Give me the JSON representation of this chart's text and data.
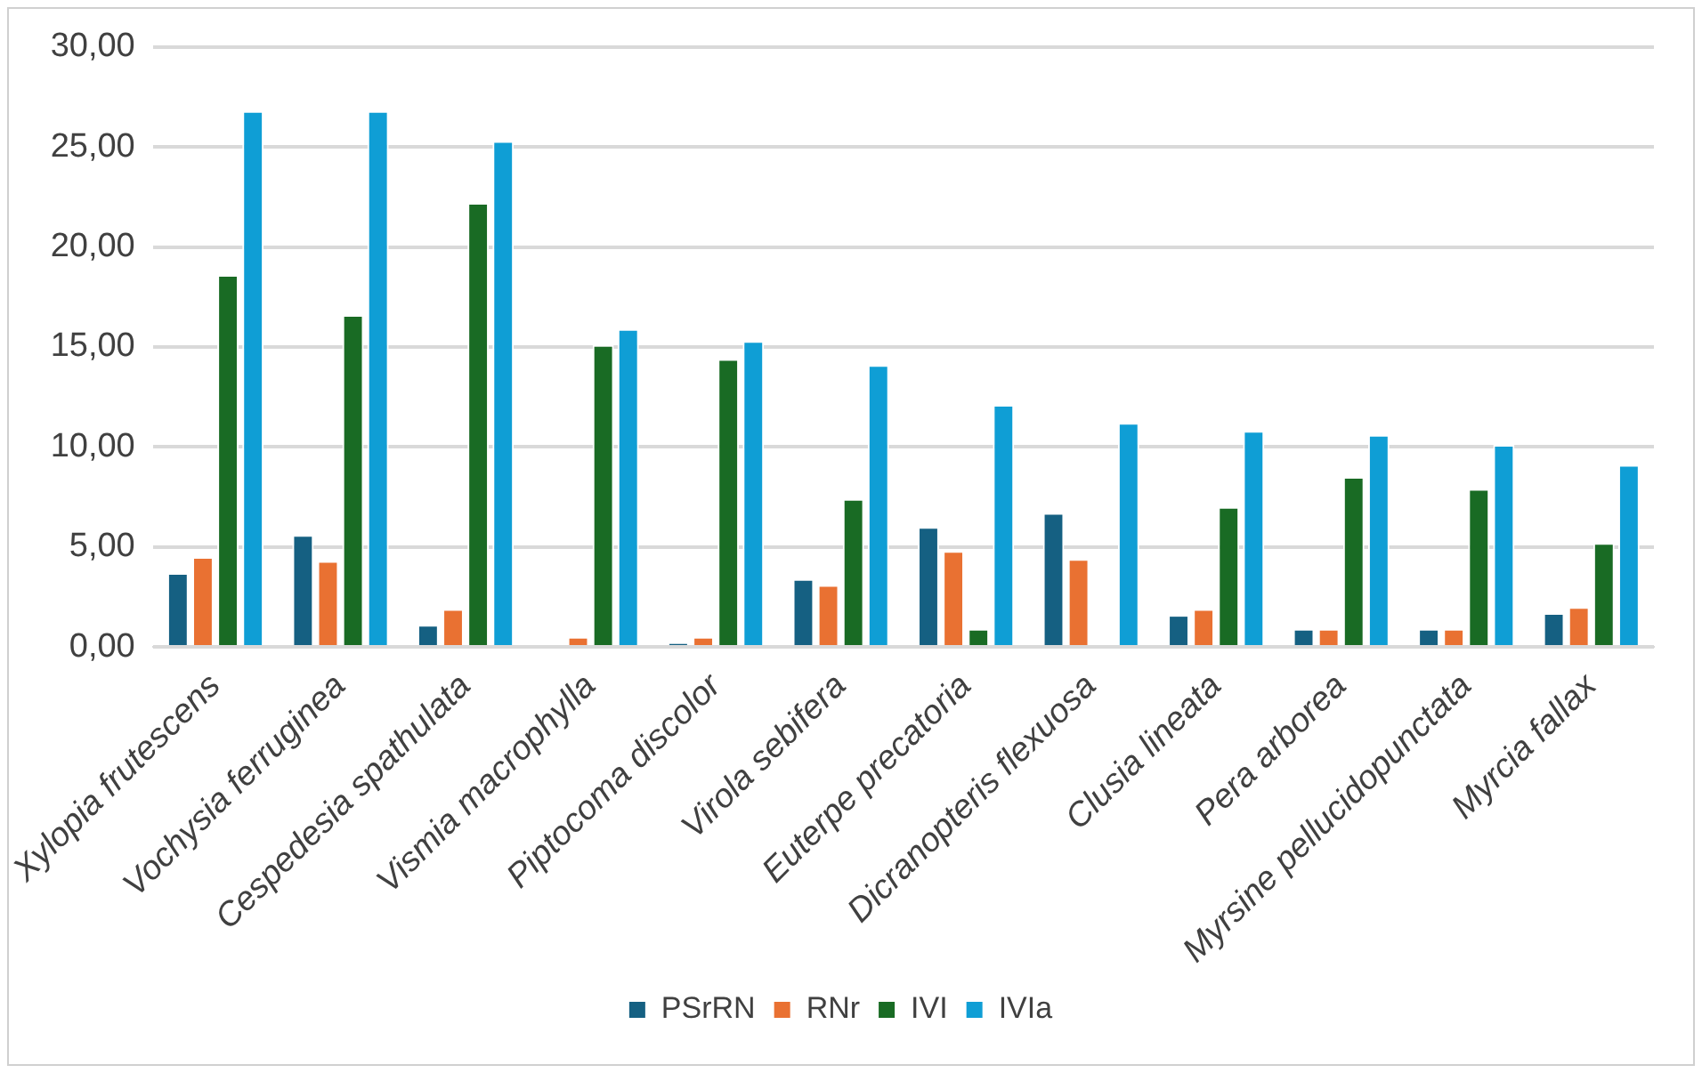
{
  "chart_data": {
    "type": "bar",
    "categories": [
      "Xylopia frutescens",
      "Vochysia ferruginea",
      "Cespedesia spathulata",
      "Vismia macrophylla",
      "Piptocoma discolor",
      "Virola sebifera",
      "Euterpe precatoria",
      "Dicranopteris flexuosa",
      "Clusia lineata",
      "Pera arborea",
      "Myrsine pellucidopunctata",
      "Myrcia fallax"
    ],
    "series": [
      {
        "name": "PSrRN",
        "color": "#156082",
        "values": [
          3.7,
          5.6,
          1.1,
          0,
          0.2,
          3.4,
          6.0,
          6.7,
          1.6,
          0.9,
          0.9,
          1.7
        ]
      },
      {
        "name": "RNr",
        "color": "#e97132",
        "values": [
          4.5,
          4.3,
          1.9,
          0.5,
          0.5,
          3.1,
          4.8,
          4.4,
          1.9,
          0.9,
          0.9,
          2.0
        ]
      },
      {
        "name": "IVI",
        "color": "#196b24",
        "values": [
          18.6,
          16.6,
          22.2,
          15.1,
          14.4,
          7.4,
          0.9,
          0,
          7.0,
          8.5,
          7.9,
          5.2
        ]
      },
      {
        "name": "IVIa",
        "color": "#0f9ed5",
        "values": [
          26.8,
          26.8,
          25.3,
          15.9,
          15.3,
          14.1,
          12.1,
          11.2,
          10.8,
          10.6,
          10.1,
          9.1
        ]
      }
    ],
    "ylim": [
      0,
      30
    ],
    "yticks": [
      {
        "value": 0,
        "label": "0,00"
      },
      {
        "value": 5,
        "label": "5,00"
      },
      {
        "value": 10,
        "label": "10,00"
      },
      {
        "value": 15,
        "label": "15,00"
      },
      {
        "value": 20,
        "label": "20,00"
      },
      {
        "value": 25,
        "label": "25,00"
      },
      {
        "value": 30,
        "label": "30,00"
      }
    ],
    "grid": "y",
    "legend": "bottom"
  }
}
